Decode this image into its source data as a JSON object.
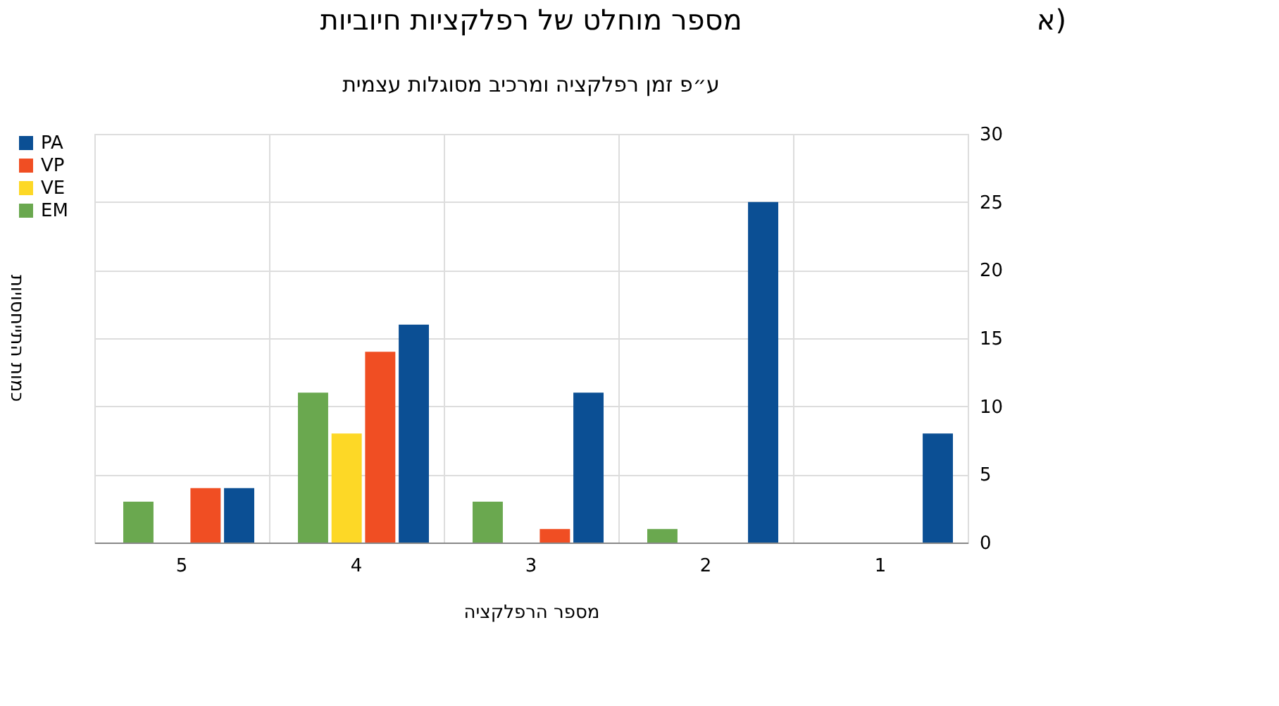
{
  "chart_data": {
    "type": "bar",
    "title": "מספר מוחלט של רפלקציות חיוביות",
    "subtitle": "ע״פ זמן רפלקציה ומרכיב מסוגלות עצמית",
    "annotations": [
      "א)"
    ],
    "xlabel": "מספר הרפלקציה",
    "ylabel": "כמות התייחסויות",
    "categories": [
      "5",
      "4",
      "3",
      "2",
      "1"
    ],
    "series": [
      {
        "name": "PA",
        "color": "#0b4f94",
        "values": [
          4,
          16,
          11,
          25,
          8
        ]
      },
      {
        "name": "VP",
        "color": "#f04e23",
        "values": [
          4,
          14,
          1,
          0,
          0
        ]
      },
      {
        "name": "VE",
        "color": "#fdd826",
        "values": [
          0,
          8,
          0,
          0,
          0
        ]
      },
      {
        "name": "EM",
        "color": "#6aa84f",
        "values": [
          3,
          11,
          3,
          1,
          0
        ]
      }
    ],
    "ylim": [
      0,
      30
    ],
    "yticks": [
      0,
      5,
      10,
      15,
      20,
      25,
      30
    ],
    "grid": true,
    "legend": "left"
  }
}
